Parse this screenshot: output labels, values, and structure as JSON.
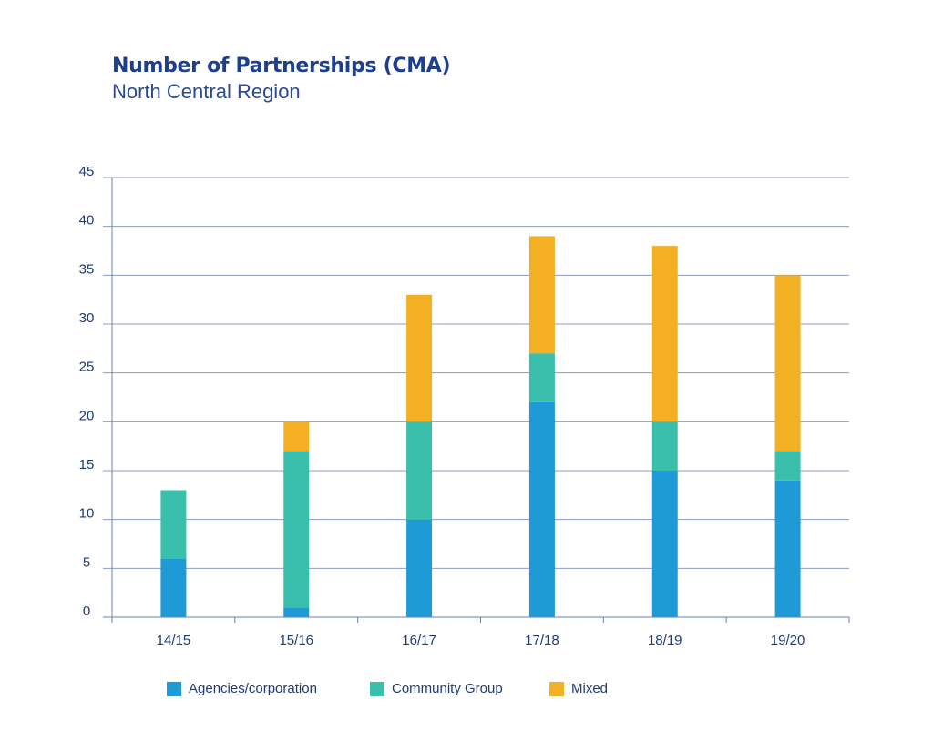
{
  "title": "Number of Partnerships (CMA)",
  "subtitle": "North Central Region",
  "chart_data": {
    "type": "bar",
    "stacked": true,
    "title": "Number of Partnerships (CMA)",
    "subtitle": "North Central Region",
    "categories": [
      "14/15",
      "15/16",
      "16/17",
      "17/18",
      "18/19",
      "19/20"
    ],
    "series": [
      {
        "name": "Agencies/corporation",
        "color": "#1e9ad6",
        "values": [
          6,
          1,
          10,
          22,
          15,
          14
        ]
      },
      {
        "name": "Community Group",
        "color": "#3bbfad",
        "values": [
          7,
          16,
          10,
          5,
          5,
          3
        ]
      },
      {
        "name": "Mixed",
        "color": "#f3b023",
        "values": [
          0,
          3,
          13,
          12,
          18,
          18
        ]
      }
    ],
    "ylim": [
      0,
      45
    ],
    "yticks": [
      0,
      5,
      10,
      15,
      20,
      25,
      30,
      35,
      40,
      45
    ],
    "grid": true,
    "legend_position": "bottom"
  }
}
